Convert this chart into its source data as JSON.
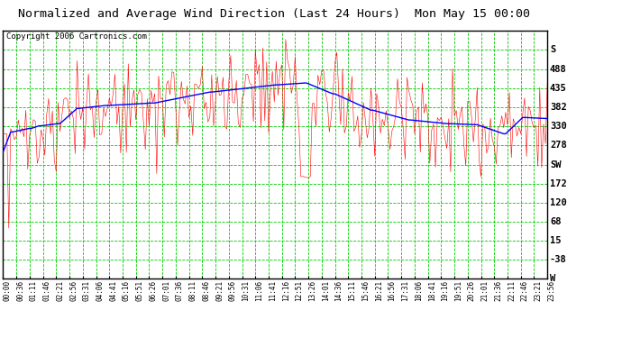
{
  "title": "Normalized and Average Wind Direction (Last 24 Hours)  Mon May 15 00:00",
  "copyright": "Copyright 2006 Cartronics.com",
  "bg_color": "#ffffff",
  "plot_bg_color": "#ffffff",
  "grid_color": "#00cc00",
  "border_color": "#000000",
  "red_line_color": "#ff0000",
  "blue_line_color": "#0000ff",
  "ytick_labels": [
    "S",
    "488",
    "435",
    "382",
    "330",
    "278",
    "SW",
    "172",
    "120",
    "68",
    "15",
    "-38",
    "W"
  ],
  "ytick_values": [
    541,
    488,
    435,
    382,
    330,
    278,
    225,
    172,
    120,
    68,
    15,
    -38,
    -90
  ],
  "ylim": [
    -90,
    595
  ],
  "n_points": 288,
  "title_fontsize": 9.5,
  "ylabel_fontsize": 7.5,
  "copyright_fontsize": 6.5
}
